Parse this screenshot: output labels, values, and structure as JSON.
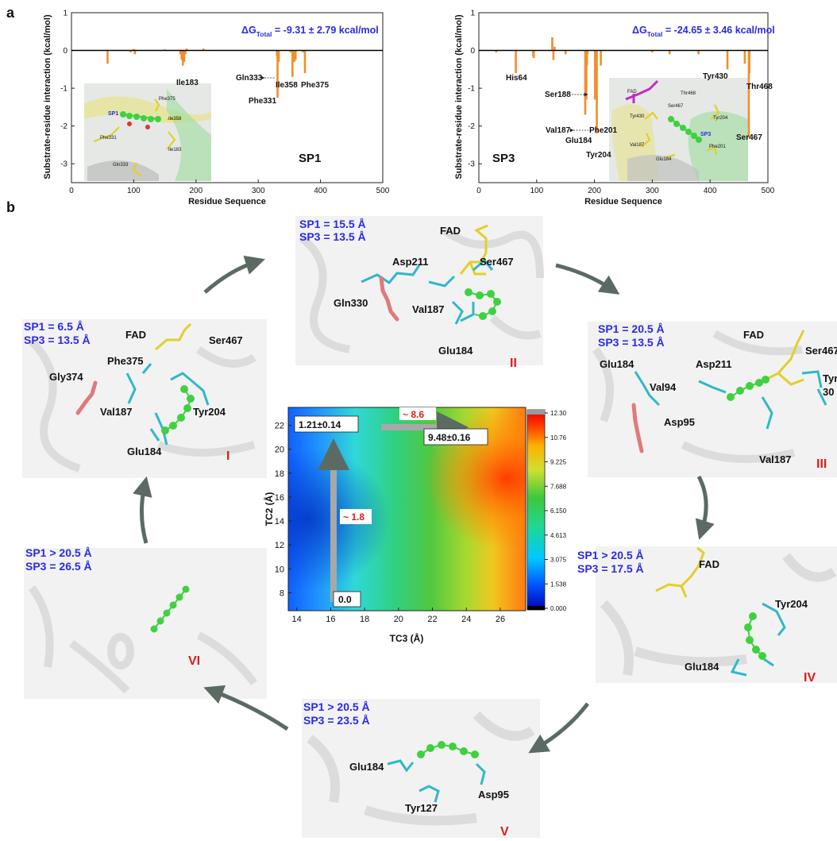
{
  "panel_labels": {
    "a": "a",
    "b": "b"
  },
  "chart_data": [
    {
      "type": "bar",
      "title": "",
      "annotation": "ΔG_Total = -9.31 ± 2.79 kcal/mol",
      "delta_g_main": "ΔG",
      "delta_g_sub": "Total",
      "delta_g_value": " = -9.31 ± 2.79 kcal/mol",
      "tag": "SP1",
      "xlabel": "Residue Sequence",
      "ylabel": "Substrate-residue interaction (kcal/mol)",
      "xlim": [
        0,
        500
      ],
      "ylim": [
        -3.5,
        1
      ],
      "xticks": [
        "0",
        "100",
        "200",
        "300",
        "400",
        "500"
      ],
      "yticks": [
        "1",
        "0",
        "-1",
        "-2",
        "-3"
      ],
      "color": "#f28e2b",
      "x": [
        58,
        95,
        100,
        102,
        150,
        175,
        177,
        179,
        181,
        183,
        185,
        212,
        330,
        331,
        333,
        352,
        355,
        358,
        360,
        372,
        375
      ],
      "values": [
        -0.35,
        -0.05,
        0.04,
        -0.1,
        0.03,
        -0.1,
        -0.25,
        -0.4,
        -0.3,
        -0.1,
        0.05,
        0.05,
        -0.15,
        -1.25,
        -0.3,
        -0.05,
        -0.7,
        -0.3,
        -0.25,
        -0.05,
        -0.6
      ],
      "residue_labels": [
        "Ile183",
        "Gln333",
        "Ile358",
        "Phe375",
        "Phe331"
      ],
      "inset_labels": [
        "Phe375",
        "SP1",
        "Ile358",
        "Phe331",
        "Ile183",
        "Gln333"
      ]
    },
    {
      "type": "bar",
      "title": "",
      "annotation": "ΔG_Total = -24.65 ± 3.46 kcal/mol",
      "delta_g_main": "ΔG",
      "delta_g_sub": "Total",
      "delta_g_value": " = -24.65 ± 3.46 kcal/mol",
      "tag": "SP3",
      "xlabel": "Residue Sequence",
      "ylabel": "Substrate-residue interaction (kcal/mol)",
      "xlim": [
        0,
        500
      ],
      "ylim": [
        -3.5,
        1
      ],
      "xticks": [
        "0",
        "100",
        "200",
        "300",
        "400",
        "500"
      ],
      "yticks": [
        "1",
        "0",
        "-1",
        "-2",
        "-3"
      ],
      "color": "#f28e2b",
      "x": [
        30,
        64,
        94,
        95,
        127,
        129,
        131,
        150,
        184,
        186,
        187,
        188,
        201,
        204,
        211,
        300,
        330,
        380,
        430,
        460,
        467,
        468
      ],
      "values": [
        -0.05,
        -0.6,
        -0.15,
        -0.2,
        0.35,
        -0.25,
        0.1,
        -0.1,
        -1.7,
        -1.3,
        -0.4,
        -0.1,
        -1.3,
        -2.2,
        -0.4,
        -0.05,
        -0.1,
        -0.1,
        -0.5,
        -0.35,
        -2.3,
        -0.6
      ],
      "residue_labels": [
        "His64",
        "Ser188",
        "Val187",
        "Glu184",
        "Phe201",
        "Tyr204",
        "Tyr430",
        "Thr468",
        "Ser467"
      ],
      "inset_labels": [
        "FAD",
        "Thr468",
        "Ser467",
        "Tyr430",
        "Tyr204",
        "SP3",
        "Val187",
        "Phe201",
        "Glu184"
      ]
    },
    {
      "type": "heatmap",
      "xlabel": "TC3 (Å)",
      "ylabel": "TC2 (Å)",
      "xlim": [
        13.5,
        27.5
      ],
      "ylim": [
        6.5,
        23.5
      ],
      "xticks": [
        "14",
        "16",
        "18",
        "20",
        "22",
        "24",
        "26"
      ],
      "yticks": [
        "8",
        "10",
        "12",
        "14",
        "16",
        "18",
        "20",
        "22"
      ],
      "colorbar_ticks": [
        "12.30",
        "10.76",
        "9.225",
        "7.688",
        "6.150",
        "4.613",
        "3.075",
        "1.538",
        "0.000"
      ],
      "colorbar_range": [
        0,
        12.3
      ],
      "annotations": {
        "min_label": "0.0",
        "start_label": "1.21±0.14",
        "end_label": "9.48±0.16",
        "barrier_up": "~ 1.8",
        "barrier_right": "~ 8.6"
      }
    }
  ],
  "states": [
    {
      "id": "I",
      "roman": "I",
      "sp1": "SP1 = 6.5 Å",
      "sp3": "SP3 = 13.5 Å",
      "residues": [
        "FAD",
        "Ser467",
        "Phe375",
        "Gly374",
        "Val187",
        "Tyr204",
        "Glu184"
      ]
    },
    {
      "id": "II",
      "roman": "II",
      "sp1": "SP1 = 15.5 Å",
      "sp3": "SP3 = 13.5 Å",
      "residues": [
        "FAD",
        "Asp211",
        "Ser467",
        "Gln330",
        "Val187",
        "Glu184"
      ]
    },
    {
      "id": "III",
      "roman": "III",
      "sp1": "SP1 = 20.5 Å",
      "sp3": "SP3 = 13.5 Å",
      "residues": [
        "FAD",
        "Ser467",
        "Glu184",
        "Asp211",
        "Tyr",
        "30",
        "Val94",
        "Asp95",
        "Val187"
      ]
    },
    {
      "id": "IV",
      "roman": "IV",
      "sp1": "SP1 > 20.5 Å",
      "sp3": "SP3 = 17.5 Å",
      "residues": [
        "FAD",
        "Tyr204",
        "Glu184"
      ]
    },
    {
      "id": "V",
      "roman": "V",
      "sp1": "SP1 > 20.5 Å",
      "sp3": "SP3 = 23.5 Å",
      "residues": [
        "Glu184",
        "Tyr127",
        "Asp95"
      ]
    },
    {
      "id": "VI",
      "roman": "VI",
      "sp1": "SP1 > 20.5 Å",
      "sp3": "SP3 = 26.5 Å",
      "residues": []
    }
  ],
  "colors": {
    "bar": "#f28e2b",
    "blue_text": "#2a2ae6",
    "roman": "#e01b1b",
    "arrow": "#5b6b64",
    "ligand_green": "#3fd13f",
    "residue_cyan": "#2fb8c8",
    "fad_yellow": "#e2cf2a",
    "ligand_pink": "#e07a7a"
  }
}
